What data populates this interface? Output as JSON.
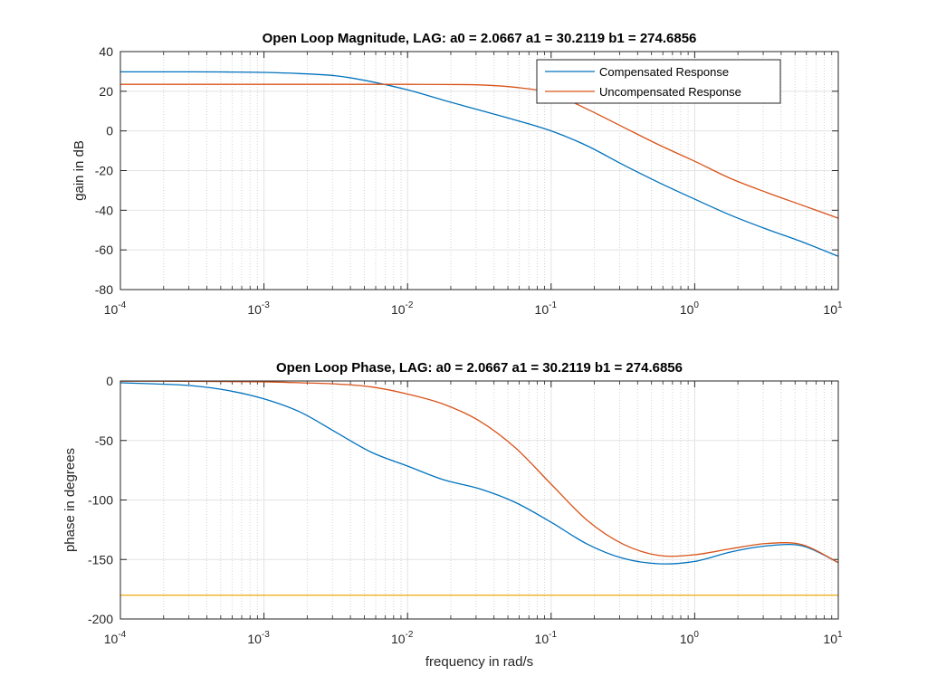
{
  "chart_data": [
    {
      "type": "line",
      "title": "Open Loop Magnitude, LAG: a0 = 2.0667 a1 = 30.2119 b1 = 274.6856",
      "xlabel": "",
      "ylabel": "gain in dB",
      "xscale": "log",
      "xlim": [
        0.0001,
        10
      ],
      "ylim": [
        -80,
        40
      ],
      "yticks": [
        40,
        20,
        0,
        -20,
        -40,
        -60,
        -80
      ],
      "xticks": [
        {
          "base": "10",
          "exp": "-4"
        },
        {
          "base": "10",
          "exp": "-3"
        },
        {
          "base": "10",
          "exp": "-2"
        },
        {
          "base": "10",
          "exp": "-1"
        },
        {
          "base": "10",
          "exp": "0"
        },
        {
          "base": "10",
          "exp": "1"
        }
      ],
      "grid": true,
      "legend": "top-right",
      "x": [
        0.0001,
        0.000178,
        0.000316,
        0.000562,
        0.001,
        0.00178,
        0.00316,
        0.00562,
        0.01,
        0.0178,
        0.0316,
        0.0562,
        0.1,
        0.178,
        0.316,
        0.562,
        1,
        1.78,
        3.16,
        5.62,
        10
      ],
      "series": [
        {
          "name": "Compensated Response",
          "color": "#0072BD",
          "values": [
            29.8,
            29.8,
            29.8,
            29.7,
            29.5,
            28.9,
            27.8,
            24.8,
            20.7,
            15.5,
            10.5,
            5.5,
            0,
            -7.5,
            -17,
            -26,
            -34.4,
            -42.5,
            -49.5,
            -56,
            -63.2
          ]
        },
        {
          "name": "Uncompensated Response",
          "color": "#D95319",
          "values": [
            23.5,
            23.5,
            23.5,
            23.5,
            23.5,
            23.5,
            23.5,
            23.5,
            23.5,
            23.4,
            23.2,
            22,
            19,
            11,
            2,
            -7,
            -15.3,
            -24,
            -31,
            -37.5,
            -44
          ]
        }
      ]
    },
    {
      "type": "line",
      "title": "Open Loop Phase, LAG: a0 = 2.0667 a1 = 30.2119 b1 = 274.6856",
      "xlabel": "frequency in rad/s",
      "ylabel": "phase in degrees",
      "xscale": "log",
      "xlim": [
        0.0001,
        10
      ],
      "ylim": [
        -200,
        0
      ],
      "yticks": [
        0,
        -50,
        -100,
        -150,
        -200
      ],
      "xticks": [
        {
          "base": "10",
          "exp": "-4"
        },
        {
          "base": "10",
          "exp": "-3"
        },
        {
          "base": "10",
          "exp": "-2"
        },
        {
          "base": "10",
          "exp": "-1"
        },
        {
          "base": "10",
          "exp": "0"
        },
        {
          "base": "10",
          "exp": "1"
        }
      ],
      "grid": true,
      "x": [
        0.0001,
        0.000178,
        0.000316,
        0.000562,
        0.001,
        0.00178,
        0.00316,
        0.00562,
        0.01,
        0.0178,
        0.0316,
        0.0562,
        0.1,
        0.178,
        0.316,
        0.562,
        1,
        1.78,
        3.16,
        5.62,
        10
      ],
      "series": [
        {
          "color": "#0072BD",
          "values": [
            -1.5,
            -2.5,
            -4,
            -8,
            -15,
            -26,
            -43,
            -60,
            -71.5,
            -83,
            -90.5,
            -102,
            -118.7,
            -137,
            -149,
            -153.6,
            -151.6,
            -143.7,
            -138.6,
            -138.6,
            -152.6
          ]
        },
        {
          "color": "#D95319",
          "values": [
            -0.2,
            -0.2,
            -0.3,
            -0.5,
            -0.7,
            -1.5,
            -2.5,
            -5,
            -11,
            -19.5,
            -33.5,
            -56,
            -86.7,
            -117,
            -137,
            -146.6,
            -146,
            -141,
            -136.6,
            -137.6,
            -152.6
          ]
        },
        {
          "color": "#EDB120",
          "values": [
            -180,
            -180,
            -180,
            -180,
            -180,
            -180,
            -180,
            -180,
            -180,
            -180,
            -180,
            -180,
            -180,
            -180,
            -180,
            -180,
            -180,
            -180,
            -180,
            -180,
            -180
          ]
        }
      ]
    }
  ]
}
